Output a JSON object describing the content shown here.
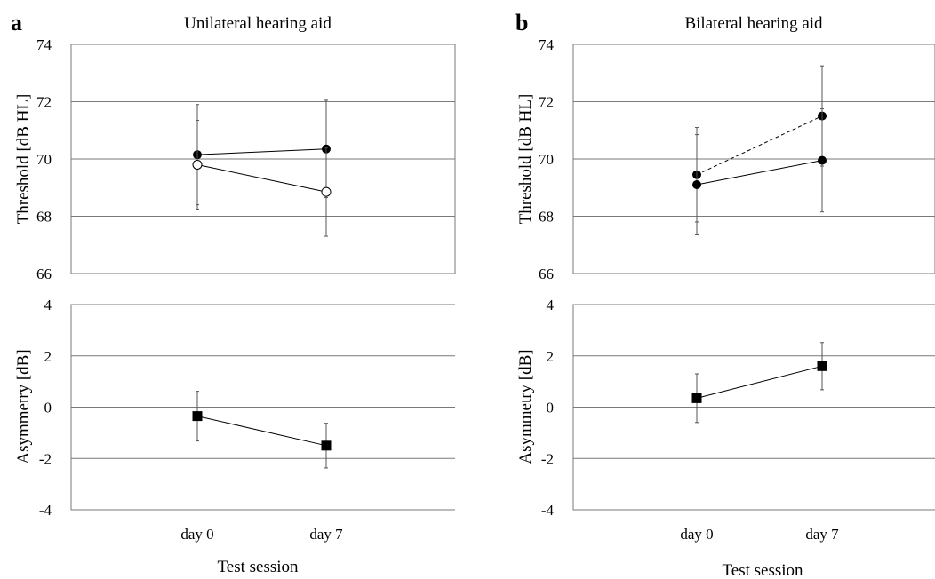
{
  "chart_data": [
    {
      "type": "line",
      "panel_letter": "a",
      "title": "Unilateral hearing aid",
      "xlabel": "",
      "ylabel": "Threshold [dB HL]",
      "categories": [
        "day 0",
        "day 7"
      ],
      "ylim": [
        66,
        74
      ],
      "yticks": [
        66,
        68,
        70,
        72,
        74
      ],
      "series": [
        {
          "marker": "filled-circle",
          "line": "solid",
          "values": [
            70.15,
            70.35
          ],
          "err": [
            1.75,
            1.7
          ]
        },
        {
          "marker": "open-circle",
          "line": "solid",
          "values": [
            69.8,
            68.85
          ],
          "err": [
            1.55,
            1.55
          ]
        }
      ]
    },
    {
      "type": "line",
      "xlabel": "Test session",
      "ylabel": "Asymmetry [dB]",
      "categories": [
        "day 0",
        "day 7"
      ],
      "ylim": [
        -4,
        4
      ],
      "yticks": [
        -4,
        -2,
        0,
        2,
        4
      ],
      "series": [
        {
          "marker": "filled-square",
          "line": "solid",
          "values": [
            -0.35,
            -1.5
          ],
          "err": [
            0.97,
            0.87
          ]
        }
      ]
    },
    {
      "type": "line",
      "panel_letter": "b",
      "title": "Bilateral hearing aid",
      "xlabel": "",
      "ylabel": "Threshold [dB HL]",
      "categories": [
        "day 0",
        "day 7"
      ],
      "ylim": [
        66,
        74
      ],
      "yticks": [
        66,
        68,
        70,
        72,
        74
      ],
      "series": [
        {
          "marker": "filled-circle",
          "line": "dashed",
          "values": [
            69.45,
            71.5
          ],
          "err": [
            1.65,
            1.75
          ]
        },
        {
          "marker": "filled-circle",
          "line": "solid",
          "values": [
            69.1,
            69.95
          ],
          "err": [
            1.75,
            1.8
          ]
        }
      ]
    },
    {
      "type": "line",
      "xlabel": "Test session",
      "ylabel": "Asymmetry [dB]",
      "categories": [
        "day 0",
        "day 7"
      ],
      "ylim": [
        -4,
        4
      ],
      "yticks": [
        -4,
        -2,
        0,
        2,
        4
      ],
      "series": [
        {
          "marker": "filled-square",
          "line": "solid",
          "values": [
            0.35,
            1.6
          ],
          "err": [
            0.95,
            0.92
          ]
        }
      ]
    }
  ]
}
